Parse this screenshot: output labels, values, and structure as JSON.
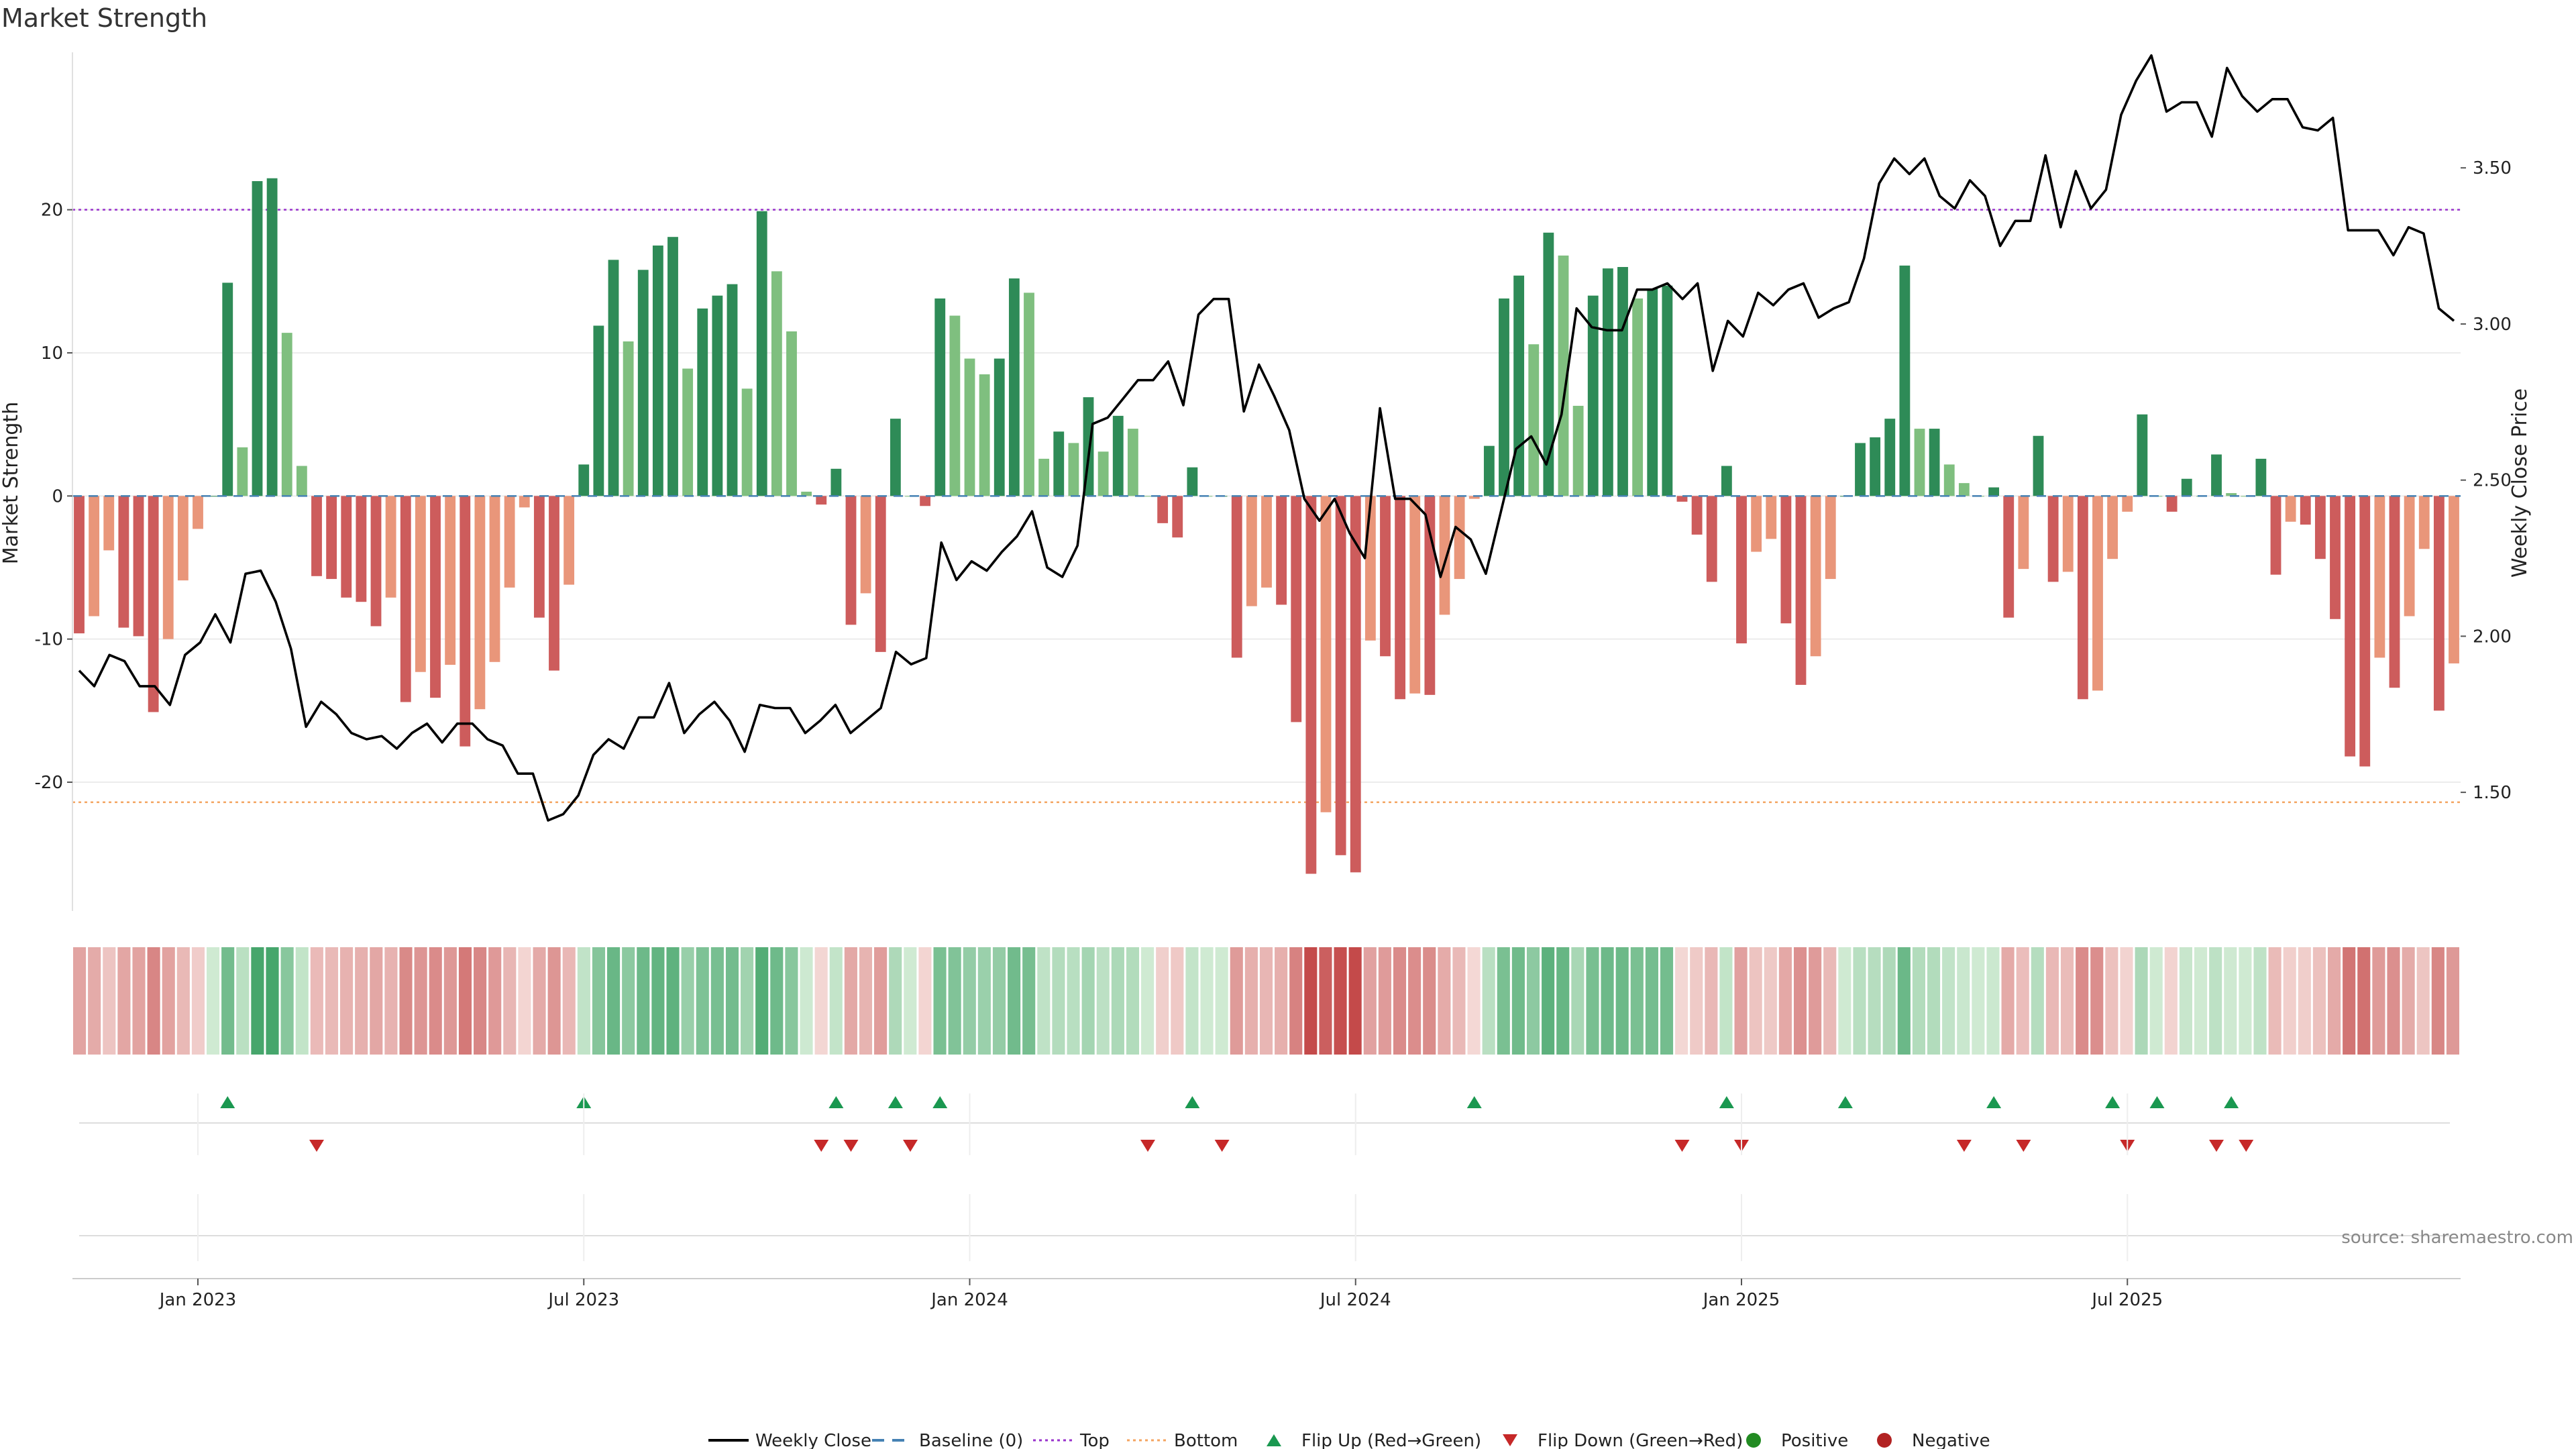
{
  "title": "Market Strength",
  "source": "source: sharemaestro.com",
  "colors": {
    "strong_green": "#2e8b57",
    "light_green": "#7fbf7f",
    "strong_red": "#cd5c5c",
    "light_red": "#e9967a",
    "price_line": "#000000",
    "top_line": "#9932cc",
    "bottom_line": "#f4a460",
    "baseline": "#4682b4",
    "flip_up": "#1a9850",
    "flip_down": "#c62828",
    "positive": "#228b22",
    "negative": "#b22222"
  },
  "legend": [
    {
      "label": "Weekly Close",
      "kind": "line",
      "color": "#000000"
    },
    {
      "label": "Baseline (0)",
      "kind": "dash",
      "color": "#4682b4"
    },
    {
      "label": "Top",
      "kind": "dot",
      "color": "#9932cc"
    },
    {
      "label": "Bottom",
      "kind": "dot",
      "color": "#f4a460"
    },
    {
      "label": "Flip Up (Red→Green)",
      "kind": "tri-up",
      "color": "#1a9850"
    },
    {
      "label": "Flip Down (Green→Red)",
      "kind": "tri-down",
      "color": "#c62828"
    },
    {
      "label": "Positive",
      "kind": "circle",
      "color": "#228b22"
    },
    {
      "label": "Negative",
      "kind": "circle",
      "color": "#b22222"
    }
  ],
  "chart_data": {
    "type": "bar",
    "start_date": "2022-11-07",
    "interval": "weekly",
    "x_ticks": [
      "Jan 2023",
      "Jul 2023",
      "Jan 2024",
      "Jul 2024",
      "Jan 2025",
      "Jul 2025"
    ],
    "y_left": {
      "label": "Market Strength",
      "ticks": [
        20,
        10,
        0,
        -10,
        -20
      ],
      "range": [
        -29,
        31
      ]
    },
    "y_right": {
      "label": "Weekly Close Price",
      "ticks": [
        "3.50",
        "3.00",
        "2.50",
        "2.00",
        "1.50"
      ],
      "range": [
        1.12,
        3.87
      ]
    },
    "top_level": 20,
    "bottom_level": -21.4,
    "strength": [
      -9.6,
      -8.4,
      -3.8,
      -9.2,
      -9.8,
      -15.1,
      -10,
      -5.9,
      -2.3,
      0,
      14.9,
      3.4,
      22,
      22.2,
      11.4,
      2.1,
      -5.6,
      -5.8,
      -7.1,
      -7.4,
      -9.1,
      -7.1,
      -14.4,
      -12.3,
      -14.1,
      -11.8,
      -17.5,
      -14.9,
      -11.6,
      -6.4,
      -0.8,
      -8.5,
      -12.2,
      -6.2,
      2.2,
      11.9,
      16.5,
      10.8,
      15.8,
      17.5,
      18.1,
      8.9,
      13.1,
      14,
      14.8,
      7.5,
      19.9,
      15.7,
      11.5,
      0.3,
      -0.6,
      1.9,
      -9,
      -6.8,
      -10.9,
      5.4,
      0,
      -0.7,
      13.8,
      12.6,
      9.6,
      8.5,
      9.6,
      15.2,
      14.2,
      2.6,
      4.5,
      3.7,
      6.9,
      3.1,
      5.6,
      4.7,
      0,
      -1.9,
      -2.9,
      2,
      0,
      0,
      -11.3,
      -7.7,
      -6.4,
      -7.6,
      -15.8,
      -26.4,
      -22.1,
      -25.1,
      -26.3,
      -10.1,
      -11.2,
      -14.2,
      -13.8,
      -13.9,
      -8.3,
      -5.8,
      -0.2,
      3.5,
      13.8,
      15.4,
      10.6,
      18.4,
      16.8,
      6.3,
      14,
      15.9,
      16,
      13.8,
      14.5,
      14.7,
      -0.4,
      -2.7,
      -6,
      2.1,
      -10.3,
      -3.9,
      -3,
      -8.9,
      -13.2,
      -11.2,
      -5.8,
      0,
      3.7,
      4.1,
      5.4,
      16.1,
      4.7,
      4.7,
      2.2,
      0.9,
      0,
      0.6,
      -8.5,
      -5.1,
      4.2,
      -6,
      -5.3,
      -14.2,
      -13.6,
      -4.4,
      -1.1,
      5.7,
      0,
      -1.1,
      1.2,
      0,
      2.9,
      0.2,
      0,
      2.6,
      -5.5,
      -1.8,
      -2,
      -4.4,
      -8.6,
      -18.2,
      -18.9,
      -11.3,
      -13.4,
      -8.4,
      -3.7,
      -15,
      -11.7
    ],
    "weekly_close": [
      1.89,
      1.84,
      1.94,
      1.92,
      1.84,
      1.84,
      1.78,
      1.94,
      1.98,
      2.07,
      1.98,
      2.2,
      2.21,
      2.11,
      1.96,
      1.71,
      1.79,
      1.75,
      1.69,
      1.67,
      1.68,
      1.64,
      1.69,
      1.72,
      1.66,
      1.72,
      1.72,
      1.67,
      1.65,
      1.56,
      1.56,
      1.41,
      1.43,
      1.49,
      1.62,
      1.67,
      1.64,
      1.74,
      1.74,
      1.85,
      1.69,
      1.75,
      1.79,
      1.73,
      1.63,
      1.78,
      1.77,
      1.77,
      1.69,
      1.73,
      1.78,
      1.69,
      1.73,
      1.77,
      1.95,
      1.91,
      1.93,
      2.3,
      2.18,
      2.24,
      2.21,
      2.27,
      2.32,
      2.4,
      2.22,
      2.19,
      2.29,
      2.68,
      2.7,
      2.76,
      2.82,
      2.82,
      2.88,
      2.74,
      3.03,
      3.08,
      3.08,
      2.72,
      2.87,
      2.77,
      2.66,
      2.44,
      2.37,
      2.44,
      2.33,
      2.25,
      2.73,
      2.44,
      2.44,
      2.39,
      2.19,
      2.35,
      2.31,
      2.2,
      2.4,
      2.6,
      2.64,
      2.55,
      2.71,
      3.05,
      2.99,
      2.98,
      2.98,
      3.11,
      3.11,
      3.13,
      3.08,
      3.13,
      2.85,
      3.01,
      2.96,
      3.1,
      3.06,
      3.11,
      3.13,
      3.02,
      3.05,
      3.07,
      3.21,
      3.45,
      3.53,
      3.48,
      3.53,
      3.41,
      3.37,
      3.46,
      3.41,
      3.25,
      3.33,
      3.33,
      3.54,
      3.31,
      3.49,
      3.37,
      3.43,
      3.67,
      3.78,
      3.86,
      3.68,
      3.71,
      3.71,
      3.6,
      3.82,
      3.73,
      3.68,
      3.72,
      3.72,
      3.63,
      3.62,
      3.66,
      3.3,
      3.3,
      3.3,
      3.22,
      3.31,
      3.29,
      3.05,
      3.01
    ],
    "flip_up": [
      "Jan 2023",
      "Jun 2023",
      "Oct 2023",
      "Nov 2023",
      "Dec 2023",
      "Apr 2024",
      "Aug 2024",
      "Dec 2024",
      "Feb 2025",
      "Apr 2025",
      "Jun 2025",
      "Jul 2025",
      "Aug 2025"
    ],
    "flip_down": [
      "Feb 2023",
      "Oct 2023",
      "Oct 2023",
      "Nov 2023",
      "Mar 2024",
      "Apr 2024",
      "Nov 2024",
      "Dec 2024",
      "Apr 2025",
      "Apr 2025",
      "Jun 2025",
      "Aug 2025",
      "Aug 2025"
    ],
    "flip_up_idx": [
      10,
      34,
      51,
      55,
      58,
      75,
      94,
      111,
      119,
      129,
      137,
      140,
      145
    ],
    "flip_down_idx": [
      16,
      50,
      52,
      56,
      72,
      77,
      108,
      112,
      127,
      131,
      138,
      144,
      146
    ]
  }
}
